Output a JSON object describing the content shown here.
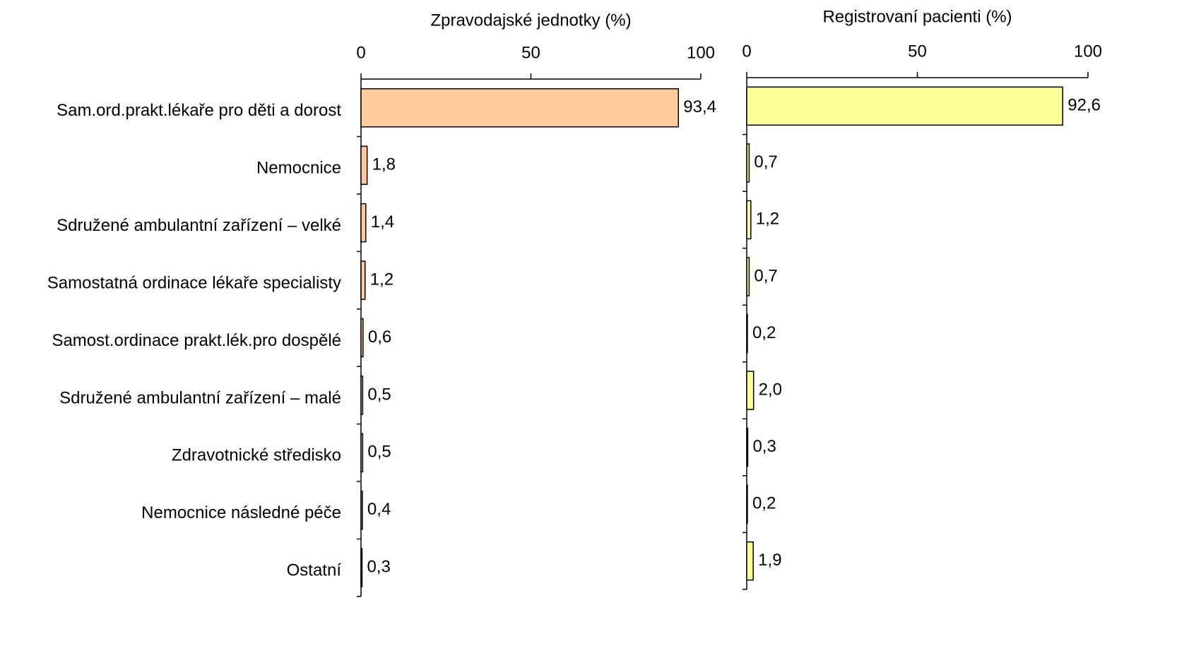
{
  "chart_data": [
    {
      "type": "bar",
      "orientation": "horizontal",
      "x_label": "Zpravodajské jednotky (%)",
      "categories": [
        "Sam.ord.prakt.lékaře pro děti a dorost",
        "Nemocnice",
        "Sdružené ambulantní zařízení – velké",
        "Samostatná ordinace lékaře specialisty",
        "Samost.ordinace prakt.lék.pro dospělé",
        "Sdružené ambulantní zařízení – malé",
        "Zdravotnické středisko",
        "Nemocnice následné péče",
        "Ostatní"
      ],
      "values": [
        93.4,
        1.8,
        1.4,
        1.2,
        0.6,
        0.5,
        0.5,
        0.4,
        0.3
      ],
      "value_labels": [
        "93,4",
        "1,8",
        "1,4",
        "1,2",
        "0,6",
        "0,5",
        "0,5",
        "0,4",
        "0,3"
      ],
      "color": "#ffcc99",
      "xlim": [
        0,
        100
      ],
      "xticks": [
        0,
        50,
        100
      ]
    },
    {
      "type": "bar",
      "orientation": "horizontal",
      "x_label": "Registrovaní pacienti (%)",
      "values": [
        92.6,
        0.7,
        1.2,
        0.7,
        0.2,
        2.0,
        0.3,
        0.2,
        1.9
      ],
      "value_labels": [
        "92,6",
        "0,7",
        "1,2",
        "0,7",
        "0,2",
        "2,0",
        "0,3",
        "0,2",
        "1,9"
      ],
      "color": "#ffff99",
      "xlim": [
        0,
        100
      ],
      "xticks": [
        0,
        50,
        100
      ]
    }
  ]
}
